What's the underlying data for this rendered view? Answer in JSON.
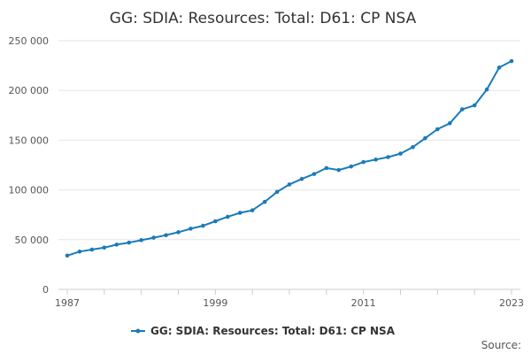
{
  "chart_data": {
    "type": "line",
    "title": "GG: SDIA: Resources: Total: D61: CP NSA",
    "xlabel": "",
    "ylabel": "",
    "ylim": [
      0,
      250000
    ],
    "xlim": [
      1987,
      2023
    ],
    "y_ticks": [
      0,
      50000,
      100000,
      150000,
      200000,
      250000
    ],
    "y_tick_labels": [
      "0",
      "50 000",
      "100 000",
      "150 000",
      "200 000",
      "250 000"
    ],
    "x_tick_labels": [
      "1987",
      "1999",
      "2011",
      "2023"
    ],
    "grid": true,
    "legend": "bottom-center",
    "series": [
      {
        "name": "GG: SDIA: Resources: Total: D61: CP NSA",
        "color": "#1a7bb9",
        "x": [
          1987,
          1988,
          1989,
          1990,
          1991,
          1992,
          1993,
          1994,
          1995,
          1996,
          1997,
          1998,
          1999,
          2000,
          2001,
          2002,
          2003,
          2004,
          2005,
          2006,
          2007,
          2008,
          2009,
          2010,
          2011,
          2012,
          2013,
          2014,
          2015,
          2016,
          2017,
          2018,
          2019,
          2020,
          2021,
          2022,
          2023
        ],
        "values": [
          34000,
          38000,
          40000,
          42000,
          45000,
          47000,
          49500,
          52000,
          54500,
          57500,
          61000,
          64000,
          68500,
          73000,
          77000,
          79500,
          88000,
          98000,
          105500,
          111000,
          116000,
          122000,
          120000,
          123500,
          128000,
          130500,
          133000,
          136500,
          143000,
          152000,
          161000,
          167000,
          181000,
          185000,
          201000,
          223000,
          229500
        ]
      }
    ]
  },
  "legend": {
    "label": "GG: SDIA: Resources: Total: D61: CP NSA"
  },
  "footer": {
    "source_label": "Source:"
  }
}
